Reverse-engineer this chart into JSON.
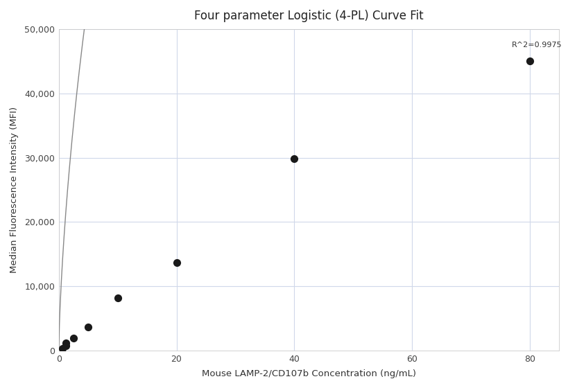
{
  "title": "Four parameter Logistic (4-PL) Curve Fit",
  "xlabel": "Mouse LAMP-2/CD107b Concentration (ng/mL)",
  "ylabel": "Median Fluorescence Intensity (MFI)",
  "scatter_x": [
    0.625,
    1.25,
    1.25,
    2.5,
    5.0,
    10.0,
    20.0,
    40.0,
    80.0
  ],
  "scatter_y": [
    300,
    800,
    1200,
    2000,
    3700,
    8200,
    13700,
    29800,
    45000
  ],
  "xlim": [
    0,
    85
  ],
  "ylim": [
    0,
    50000
  ],
  "yticks": [
    0,
    10000,
    20000,
    30000,
    40000,
    50000
  ],
  "xticks": [
    0,
    20,
    40,
    60,
    80
  ],
  "r_squared": "R^2=0.9975",
  "dot_color": "#1a1a1a",
  "line_color": "#888888",
  "grid_color": "#d0d8ea",
  "background_color": "#ffffff",
  "plot_bg_color": "#ffffff",
  "title_fontsize": 12,
  "label_fontsize": 9.5,
  "tick_fontsize": 9
}
